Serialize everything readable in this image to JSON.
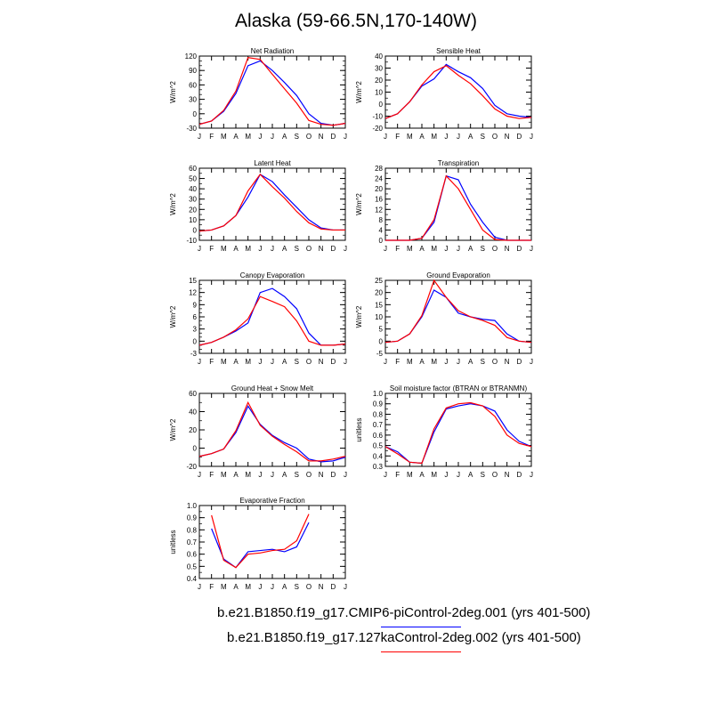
{
  "title": "Alaska (59-66.5N,170-140W)",
  "colors": {
    "series1": "#0000ff",
    "series2": "#ff0000"
  },
  "legend": [
    {
      "label": "b.e21.B1850.f19_g17.CMIP6-piControl-2deg.001 (yrs 401-500)",
      "color": "#0000ff"
    },
    {
      "label": "b.e21.B1850.f19_g17.127kaControl-2deg.002 (yrs 401-500)",
      "color": "#ff0000"
    }
  ],
  "chart_data": [
    {
      "type": "line",
      "title": "Net Radiation",
      "ylabel": "W/m^2",
      "x": [
        "J",
        "F",
        "M",
        "A",
        "M",
        "J",
        "J",
        "A",
        "S",
        "O",
        "N",
        "D",
        "J"
      ],
      "ylim": [
        -30,
        120
      ],
      "yticks": [
        -30,
        0,
        30,
        60,
        90,
        120
      ],
      "yminor": 10,
      "series": [
        {
          "color": "#0000ff",
          "values": [
            -22,
            -15,
            5,
            42,
            100,
            110,
            90,
            65,
            38,
            0,
            -20,
            -24,
            -20
          ]
        },
        {
          "color": "#ff0000",
          "values": [
            -22,
            -15,
            7,
            47,
            117,
            113,
            82,
            52,
            22,
            -14,
            -22,
            -24,
            -20
          ]
        }
      ]
    },
    {
      "type": "line",
      "title": "Sensible Heat",
      "ylabel": "W/m^2",
      "x": [
        "J",
        "F",
        "M",
        "A",
        "M",
        "J",
        "J",
        "A",
        "S",
        "O",
        "N",
        "D",
        "J"
      ],
      "ylim": [
        -20,
        40
      ],
      "yticks": [
        -20,
        -10,
        0,
        10,
        20,
        30,
        40
      ],
      "yminor": 5,
      "series": [
        {
          "color": "#0000ff",
          "values": [
            -12,
            -8,
            2,
            15,
            21,
            33,
            27,
            22,
            13,
            -1,
            -8,
            -10,
            -11
          ]
        },
        {
          "color": "#ff0000",
          "values": [
            -12,
            -8,
            2,
            16,
            27,
            32,
            24,
            17,
            7,
            -4,
            -10,
            -12,
            -11
          ]
        }
      ]
    },
    {
      "type": "line",
      "title": "Latent Heat",
      "ylabel": "W/m^2",
      "x": [
        "J",
        "F",
        "M",
        "A",
        "M",
        "J",
        "J",
        "A",
        "S",
        "O",
        "N",
        "D",
        "J"
      ],
      "ylim": [
        -10,
        60
      ],
      "yticks": [
        -10,
        0,
        10,
        20,
        30,
        40,
        50,
        60
      ],
      "yminor": 5,
      "series": [
        {
          "color": "#0000ff",
          "values": [
            -1,
            0,
            4,
            14,
            32,
            54,
            47,
            34,
            22,
            10,
            2,
            0,
            0
          ]
        },
        {
          "color": "#ff0000",
          "values": [
            -1,
            0,
            4,
            14,
            38,
            54,
            42,
            31,
            18,
            7,
            1,
            0,
            0
          ]
        }
      ]
    },
    {
      "type": "line",
      "title": "Transpiration",
      "ylabel": "W/m^2",
      "x": [
        "J",
        "F",
        "M",
        "A",
        "M",
        "J",
        "J",
        "A",
        "S",
        "O",
        "N",
        "D",
        "J"
      ],
      "ylim": [
        0,
        28
      ],
      "yticks": [
        0,
        4,
        8,
        12,
        16,
        20,
        24,
        28
      ],
      "yminor": 2,
      "series": [
        {
          "color": "#0000ff",
          "values": [
            0,
            0,
            0,
            0.8,
            7,
            25,
            23.5,
            14,
            7,
            1.2,
            0,
            0,
            0
          ]
        },
        {
          "color": "#ff0000",
          "values": [
            0,
            0,
            0,
            0.8,
            8,
            25,
            20,
            12,
            4,
            0.3,
            0,
            0,
            0
          ]
        }
      ]
    },
    {
      "type": "line",
      "title": "Canopy Evaporation",
      "ylabel": "W/m^2",
      "x": [
        "J",
        "F",
        "M",
        "A",
        "M",
        "J",
        "J",
        "A",
        "S",
        "O",
        "N",
        "D",
        "J"
      ],
      "ylim": [
        -3,
        15
      ],
      "yticks": [
        -3,
        0,
        3,
        6,
        9,
        12,
        15
      ],
      "yminor": 1,
      "series": [
        {
          "color": "#0000ff",
          "values": [
            -1,
            -0.3,
            1,
            2.5,
            4.5,
            12,
            13,
            11,
            8,
            2,
            -1,
            -1,
            -0.7
          ]
        },
        {
          "color": "#ff0000",
          "values": [
            -1,
            -0.3,
            1,
            2.8,
            5.5,
            11,
            9.8,
            8.5,
            5,
            0,
            -1,
            -1,
            -0.7
          ]
        }
      ]
    },
    {
      "type": "line",
      "title": "Ground Evaporation",
      "ylabel": "W/m^2",
      "x": [
        "J",
        "F",
        "M",
        "A",
        "M",
        "J",
        "J",
        "A",
        "S",
        "O",
        "N",
        "D",
        "J"
      ],
      "ylim": [
        -5,
        25
      ],
      "yticks": [
        -5,
        0,
        5,
        10,
        15,
        20,
        25
      ],
      "yminor": 2.5,
      "series": [
        {
          "color": "#0000ff",
          "values": [
            -0.5,
            0,
            3,
            10,
            21,
            18,
            11.5,
            10,
            9,
            8.5,
            3,
            0,
            -0.5
          ]
        },
        {
          "color": "#ff0000",
          "values": [
            -0.5,
            0,
            3,
            10.5,
            25,
            18,
            12.5,
            10,
            8.5,
            6.5,
            1.5,
            0,
            -0.5
          ]
        }
      ]
    },
    {
      "type": "line",
      "title": "Ground Heat + Snow Melt",
      "ylabel": "W/m^2",
      "x": [
        "J",
        "F",
        "M",
        "A",
        "M",
        "J",
        "J",
        "A",
        "S",
        "O",
        "N",
        "D",
        "J"
      ],
      "ylim": [
        -20,
        60
      ],
      "yticks": [
        -20,
        0,
        20,
        40,
        60
      ],
      "yminor": 10,
      "series": [
        {
          "color": "#0000ff",
          "values": [
            -9,
            -6,
            -1,
            17,
            46,
            26,
            14,
            6,
            0,
            -12,
            -15,
            -14,
            -10
          ]
        },
        {
          "color": "#ff0000",
          "values": [
            -9,
            -6,
            -1,
            19,
            50,
            25,
            13,
            4,
            -4,
            -14,
            -14,
            -12,
            -9
          ]
        }
      ]
    },
    {
      "type": "line",
      "title": "Soil moisture factor (BTRAN or BTRANMN)",
      "ylabel": "unitless",
      "x": [
        "J",
        "F",
        "M",
        "A",
        "M",
        "J",
        "J",
        "A",
        "S",
        "O",
        "N",
        "D",
        "J"
      ],
      "ylim": [
        0.3,
        1.0
      ],
      "yticks": [
        0.3,
        0.4,
        0.5,
        0.6,
        0.7,
        0.8,
        0.9,
        1.0
      ],
      "yminor": 0.05,
      "series": [
        {
          "color": "#0000ff",
          "values": [
            0.49,
            0.44,
            0.34,
            0.33,
            0.63,
            0.85,
            0.88,
            0.9,
            0.88,
            0.83,
            0.65,
            0.54,
            0.49
          ]
        },
        {
          "color": "#ff0000",
          "values": [
            0.49,
            0.42,
            0.34,
            0.33,
            0.66,
            0.86,
            0.9,
            0.91,
            0.88,
            0.78,
            0.6,
            0.52,
            0.49
          ]
        }
      ]
    },
    {
      "type": "line",
      "title": "Evaporative Fraction",
      "ylabel": "unitless",
      "x": [
        "J",
        "F",
        "M",
        "A",
        "M",
        "J",
        "J",
        "A",
        "S",
        "O",
        "N",
        "D",
        "J"
      ],
      "ylim": [
        0.4,
        1.0
      ],
      "yticks": [
        0.4,
        0.5,
        0.6,
        0.7,
        0.8,
        0.9,
        1.0
      ],
      "yminor": 0.05,
      "series": [
        {
          "color": "#0000ff",
          "values": [
            null,
            0.81,
            0.56,
            0.49,
            0.62,
            0.63,
            0.64,
            0.62,
            0.66,
            0.86,
            null,
            null,
            null
          ]
        },
        {
          "color": "#ff0000",
          "values": [
            null,
            0.92,
            0.55,
            0.49,
            0.6,
            0.61,
            0.63,
            0.64,
            0.71,
            0.93,
            null,
            null,
            null
          ]
        }
      ]
    }
  ]
}
